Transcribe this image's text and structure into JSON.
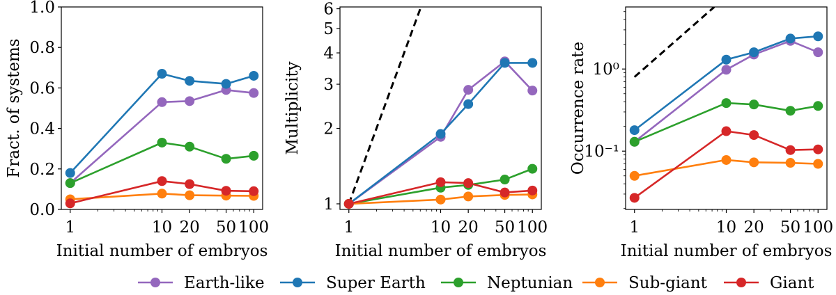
{
  "chart_data": [
    {
      "type": "line",
      "xscale": "log",
      "yscale": "linear",
      "x": [
        1,
        10,
        20,
        50,
        100
      ],
      "xticks": [
        "1",
        "10",
        "20",
        "50",
        "100"
      ],
      "ylim": [
        0.0,
        1.0
      ],
      "yticks": [
        "0.0",
        "0.2",
        "0.4",
        "0.6",
        "0.8",
        "1.0"
      ],
      "ytick_values": [
        0.0,
        0.2,
        0.4,
        0.6,
        0.8,
        1.0
      ],
      "xlabel": "Initial number of embryos",
      "ylabel": "Fract. of systems",
      "series": [
        {
          "name": "Earth-like",
          "color": "#9467bd",
          "values": [
            0.13,
            0.53,
            0.535,
            0.59,
            0.575
          ]
        },
        {
          "name": "Super Earth",
          "color": "#1f77b4",
          "values": [
            0.18,
            0.67,
            0.635,
            0.62,
            0.66
          ]
        },
        {
          "name": "Neptunian",
          "color": "#2ca02c",
          "values": [
            0.13,
            0.33,
            0.31,
            0.25,
            0.265
          ]
        },
        {
          "name": "Sub-giant",
          "color": "#ff7f0e",
          "values": [
            0.05,
            0.078,
            0.07,
            0.068,
            0.067
          ]
        },
        {
          "name": "Giant",
          "color": "#d62728",
          "values": [
            0.03,
            0.14,
            0.125,
            0.092,
            0.09
          ]
        }
      ]
    },
    {
      "type": "line",
      "xscale": "log",
      "yscale": "log",
      "x": [
        1,
        10,
        20,
        50,
        100
      ],
      "xticks": [
        "1",
        "10",
        "20",
        "50",
        "100"
      ],
      "ylim": [
        0.95,
        6.1
      ],
      "yticks": [
        "1",
        "2",
        "3",
        "4",
        "5",
        "6"
      ],
      "ytick_values": [
        1,
        2,
        3,
        4,
        5,
        6
      ],
      "xlabel": "Initial number of embryos",
      "ylabel": "Multiplicity",
      "reference_line": {
        "style": "dashed",
        "color": "#000000",
        "points": [
          [
            1,
            1
          ],
          [
            6.4,
            6.4
          ]
        ]
      },
      "series": [
        {
          "name": "Earth-like",
          "color": "#9467bd",
          "values": [
            1.0,
            1.85,
            2.85,
            3.7,
            2.83
          ]
        },
        {
          "name": "Super Earth",
          "color": "#1f77b4",
          "values": [
            1.0,
            1.9,
            2.5,
            3.65,
            3.65
          ]
        },
        {
          "name": "Neptunian",
          "color": "#2ca02c",
          "values": [
            1.0,
            1.16,
            1.19,
            1.25,
            1.38
          ]
        },
        {
          "name": "Sub-giant",
          "color": "#ff7f0e",
          "values": [
            1.0,
            1.04,
            1.07,
            1.085,
            1.09
          ]
        },
        {
          "name": "Giant",
          "color": "#d62728",
          "values": [
            1.0,
            1.22,
            1.21,
            1.11,
            1.13
          ]
        }
      ]
    },
    {
      "type": "line",
      "xscale": "log",
      "yscale": "log",
      "x": [
        1,
        10,
        20,
        50,
        100
      ],
      "xticks": [
        "1",
        "10",
        "20",
        "50",
        "100"
      ],
      "ylim": [
        0.0195,
        5.7
      ],
      "yticks": [
        "10⁻¹",
        "10⁰"
      ],
      "ytick_values": [
        0.1,
        1.0
      ],
      "xlabel": "Initial number of embryos",
      "ylabel": "Occurrence rate",
      "reference_line": {
        "style": "dashed",
        "color": "#000000",
        "points": [
          [
            1,
            0.8
          ],
          [
            7.4,
            5.7
          ]
        ]
      },
      "series": [
        {
          "name": "Earth-like",
          "color": "#9467bd",
          "values": [
            0.13,
            0.98,
            1.5,
            2.2,
            1.6
          ]
        },
        {
          "name": "Super Earth",
          "color": "#1f77b4",
          "values": [
            0.18,
            1.3,
            1.6,
            2.35,
            2.5
          ]
        },
        {
          "name": "Neptunian",
          "color": "#2ca02c",
          "values": [
            0.13,
            0.385,
            0.37,
            0.31,
            0.355
          ]
        },
        {
          "name": "Sub-giant",
          "color": "#ff7f0e",
          "values": [
            0.05,
            0.078,
            0.073,
            0.072,
            0.07
          ]
        },
        {
          "name": "Giant",
          "color": "#d62728",
          "values": [
            0.027,
            0.175,
            0.157,
            0.103,
            0.105
          ]
        }
      ]
    }
  ],
  "legend": {
    "placement": "bottom-center",
    "items": [
      {
        "label": "Earth-like",
        "color": "#9467bd"
      },
      {
        "label": "Super Earth",
        "color": "#1f77b4"
      },
      {
        "label": "Neptunian",
        "color": "#2ca02c"
      },
      {
        "label": "Sub-giant",
        "color": "#ff7f0e"
      },
      {
        "label": "Giant",
        "color": "#d62728"
      }
    ]
  }
}
